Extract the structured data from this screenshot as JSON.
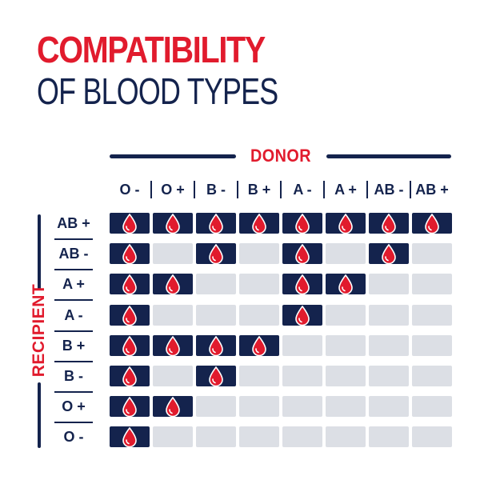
{
  "title": {
    "line1": "COMPATIBILITY",
    "line2": "OF BLOOD TYPES"
  },
  "donor_label": "DONOR",
  "recipient_label": "RECIPIENT",
  "donors": [
    "O -",
    "O +",
    "B -",
    "B +",
    "A -",
    "A +",
    "AB -",
    "AB +"
  ],
  "recipients": [
    "AB +",
    "AB -",
    "A +",
    "A -",
    "B +",
    "B -",
    "O +",
    "O -"
  ],
  "compatibility": [
    [
      1,
      1,
      1,
      1,
      1,
      1,
      1,
      1
    ],
    [
      1,
      0,
      1,
      0,
      1,
      0,
      1,
      0
    ],
    [
      1,
      1,
      0,
      0,
      1,
      1,
      0,
      0
    ],
    [
      1,
      0,
      0,
      0,
      1,
      0,
      0,
      0
    ],
    [
      1,
      1,
      1,
      1,
      0,
      0,
      0,
      0
    ],
    [
      1,
      0,
      1,
      0,
      0,
      0,
      0,
      0
    ],
    [
      1,
      1,
      0,
      0,
      0,
      0,
      0,
      0
    ],
    [
      1,
      0,
      0,
      0,
      0,
      0,
      0,
      0
    ]
  ],
  "colors": {
    "navy": "#14234d",
    "red": "#e11b2d",
    "empty": "#dcdfe5"
  },
  "icons": {
    "compatible": "blood-drop-icon"
  }
}
